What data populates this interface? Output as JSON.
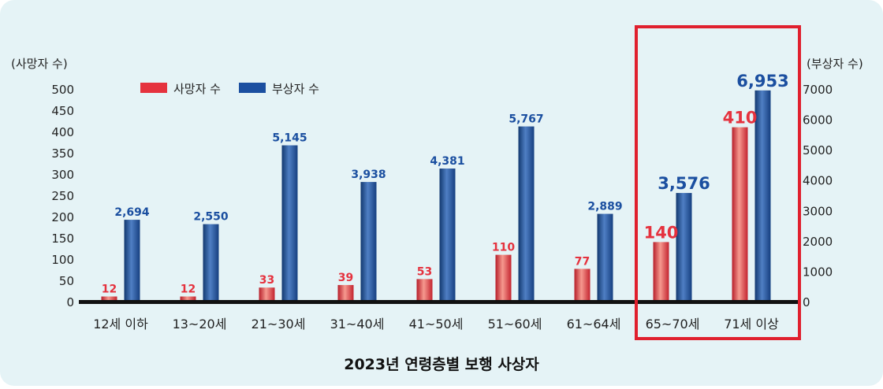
{
  "chart_data": {
    "type": "bar",
    "title": "2023년 연령층별 보행 사상자",
    "categories": [
      "12세 이하",
      "13~20세",
      "21~30세",
      "31~40세",
      "41~50세",
      "51~60세",
      "61~64세",
      "65~70세",
      "71세 이상"
    ],
    "series": [
      {
        "name": "사망자 수",
        "axis": "left",
        "color": "#e5323e",
        "values": [
          12,
          12,
          33,
          39,
          53,
          110,
          77,
          140,
          410
        ],
        "labels": [
          "12",
          "12",
          "33",
          "39",
          "53",
          "110",
          "77",
          "140",
          "410"
        ]
      },
      {
        "name": "부상자 수",
        "axis": "right",
        "color": "#1b4fa0",
        "values": [
          2694,
          2550,
          5145,
          3938,
          4381,
          5767,
          2889,
          3576,
          6953
        ],
        "labels": [
          "2,694",
          "2,550",
          "5,145",
          "3,938",
          "4,381",
          "5,767",
          "2,889",
          "3,576",
          "6,953"
        ]
      }
    ],
    "left_axis": {
      "label": "(사망자 수)",
      "ylim": [
        0,
        500
      ],
      "ticks": [
        "0",
        "50",
        "100",
        "150",
        "200",
        "250",
        "300",
        "350",
        "400",
        "450",
        "500"
      ]
    },
    "right_axis": {
      "label": "(부상자 수)",
      "ylim": [
        0,
        7000
      ],
      "ticks": [
        "0",
        "1000",
        "2000",
        "3000",
        "4000",
        "5000",
        "6000",
        "7000"
      ]
    },
    "highlighted_categories": [
      "65~70세",
      "71세 이상"
    ],
    "highlight_color": "#e0202e",
    "background_color": "#e5f3f6",
    "grid": false,
    "legend_position": "top-left"
  }
}
